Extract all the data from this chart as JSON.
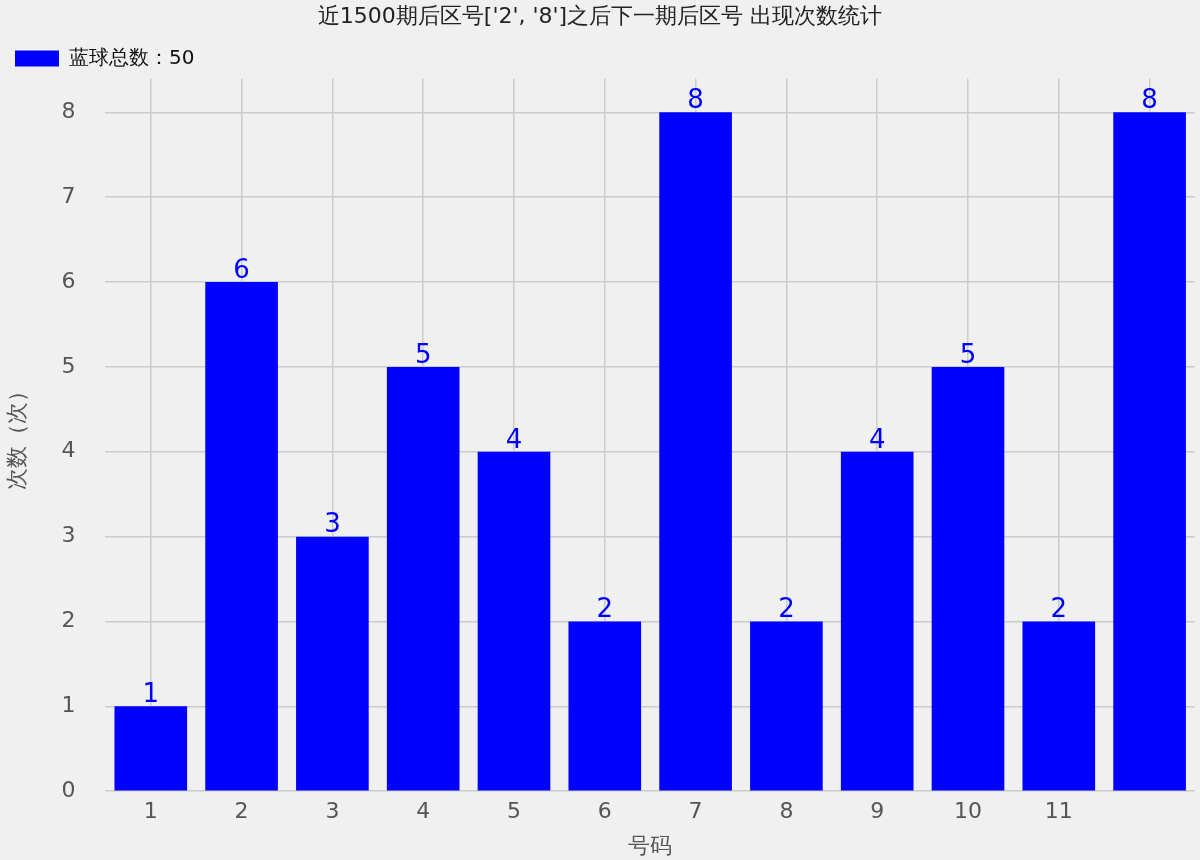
{
  "chart_data": {
    "type": "bar",
    "title": "近1500期后区号['2', '8']之后下一期后区号 出现次数统计",
    "xlabel": "号码",
    "ylabel": "次数（次）",
    "categories": [
      "1",
      "2",
      "3",
      "4",
      "5",
      "6",
      "7",
      "8",
      "9",
      "10",
      "11",
      null
    ],
    "series": [
      {
        "name": "蓝球总数：50",
        "color": "#0000ff",
        "values": [
          1,
          6,
          3,
          5,
          4,
          2,
          8,
          2,
          4,
          5,
          2,
          8
        ]
      }
    ],
    "ylim": [
      0,
      8.4
    ],
    "yticks": [
      0,
      1,
      2,
      3,
      4,
      5,
      6,
      7,
      8
    ],
    "grid": true,
    "legend": "top left",
    "data_labels": true
  }
}
